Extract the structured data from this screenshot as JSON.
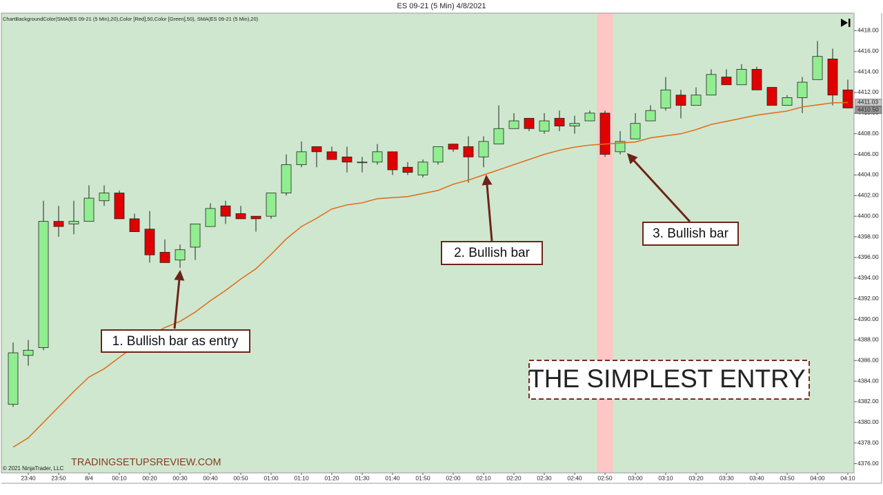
{
  "chart_data": {
    "type": "candlestick",
    "title": "ES 09-21 (5 Min)  4/8/2021",
    "indicator_label": "ChartBackgroundColor(SMA(ES 09-21 (5 Min),20),Color [Red],50,Color [Green],50), SMA(ES 09-21 (5 Min),20)",
    "copyright": "© 2021 NinjaTrader, LLC",
    "watermark": "TRADINGSETUPSREVIEW.COM",
    "headline": "THE SIMPLEST ENTRY",
    "annotations": [
      "1. Bullish bar as entry",
      "2. Bullish bar",
      "3. Bullish bar"
    ],
    "categories": [
      null,
      "23:40",
      null,
      "23:50",
      null,
      "8/4",
      null,
      "00:10",
      null,
      "00:20",
      null,
      "00:30",
      null,
      "00:40",
      null,
      "00:50",
      null,
      "01:00",
      null,
      "01:10",
      null,
      "01:20",
      null,
      "01:30",
      null,
      "01:40",
      null,
      "01:50",
      null,
      "02:00",
      null,
      "02:10",
      null,
      "02:20",
      null,
      "02:30",
      null,
      "02:40",
      null,
      "02:50",
      null,
      "03:00",
      null,
      "03:10",
      null,
      "03:20",
      null,
      "03:30",
      null,
      "03:40",
      null,
      "03:50",
      null,
      "04:00",
      null,
      "04:10"
    ],
    "ohlc": {
      "up_color": "#90ee90",
      "down_color": "#e00000",
      "open": [
        4381.75,
        4386.5,
        4387.25,
        4399.5,
        4399.25,
        4399.5,
        4401.5,
        4402.25,
        4399.75,
        4398.75,
        4396.5,
        4395.75,
        4397,
        4399,
        4401,
        4400.25,
        4400,
        4400,
        4402.25,
        4405,
        4406.75,
        4406.25,
        4405.75,
        4405.25,
        4405.25,
        4406.25,
        4404.75,
        4404,
        4405.25,
        4407,
        4406.75,
        4405.75,
        4407,
        4408.5,
        4409.5,
        4408.25,
        4409.5,
        4408.75,
        4409.25,
        4410,
        4406.25,
        4407.5,
        4409.25,
        4410.5,
        4411.75,
        4410.75,
        4411.75,
        4413.5,
        4412.75,
        4414.25,
        4412.5,
        4410.75,
        4411.5,
        4413.25,
        4415.25,
        4412.25
      ],
      "high": [
        4387.75,
        4388,
        4401.5,
        4401,
        4401.5,
        4403,
        4403,
        4402.5,
        4400.25,
        4400.5,
        4397.75,
        4397.25,
        4399.25,
        4401.25,
        4401.5,
        4401,
        4400,
        4402.25,
        4406,
        4407.25,
        4406.75,
        4406.75,
        4406.75,
        4405.75,
        4407,
        4406.25,
        4405.25,
        4405.5,
        4406.75,
        4407,
        4407.75,
        4407.75,
        4410.75,
        4410,
        4409.5,
        4410,
        4410.25,
        4409.75,
        4410.25,
        4410.25,
        4408.25,
        4410,
        4410.75,
        4413.5,
        4412.25,
        4412.5,
        4414.25,
        4414.25,
        4414.75,
        4414.5,
        4412.5,
        4411.75,
        4413.5,
        4417,
        4416.25,
        4413.25
      ],
      "low": [
        4381.5,
        4385.5,
        4387,
        4398,
        4398.25,
        4399.5,
        4401,
        4399.75,
        4398.5,
        4395.5,
        4395.5,
        4395,
        4395.75,
        4399,
        4399.25,
        4399.75,
        4398.5,
        4399.75,
        4402,
        4404.75,
        4404.75,
        4405.5,
        4404.25,
        4404.25,
        4405,
        4404,
        4404,
        4403.75,
        4405,
        4406.25,
        4403.25,
        4404.75,
        4407,
        4408.5,
        4408.25,
        4408,
        4408.25,
        4408,
        4409.25,
        4405.75,
        4406,
        4407.5,
        4409.25,
        4410.25,
        4409.5,
        4410.75,
        4411.75,
        4412.75,
        4412.75,
        4412.25,
        4410.75,
        4410.75,
        4410,
        4413.25,
        4410.75,
        4410.5
      ],
      "close": [
        4386.75,
        4387,
        4399.5,
        4399,
        4399.5,
        4401.75,
        4402.25,
        4399.75,
        4398.5,
        4396.25,
        4395.5,
        4396.75,
        4399.25,
        4400.75,
        4400,
        4399.75,
        4399.75,
        4402.25,
        4405,
        4406.25,
        4406.25,
        4405.5,
        4405.25,
        4405.25,
        4406.25,
        4404.5,
        4404.25,
        4405.25,
        4406.75,
        4406.5,
        4405.75,
        4407.25,
        4408.5,
        4409.25,
        4408.5,
        4409.25,
        4408.75,
        4409,
        4410,
        4406,
        4407.25,
        4409,
        4410.25,
        4412.25,
        4410.75,
        4411.75,
        4413.75,
        4412.75,
        4414.25,
        4412.25,
        4410.75,
        4411.5,
        4413,
        4415.5,
        4411.75,
        4410.5
      ],
      "last_label": "4410.50"
    },
    "sma": {
      "color": "#e0701e",
      "values": [
        4377.6,
        4378.5,
        4380,
        4381.5,
        4383,
        4384.4,
        4385.2,
        4386.3,
        4387.4,
        4388.4,
        4389.2,
        4389.8,
        4390.7,
        4391.8,
        4392.8,
        4393.9,
        4394.9,
        4396.3,
        4397.8,
        4399,
        4399.8,
        4400.7,
        4401.1,
        4401.3,
        4401.7,
        4401.8,
        4401.9,
        4402.2,
        4402.5,
        4403.1,
        4403.5,
        4404,
        4404.5,
        4405,
        4405.5,
        4406,
        4406.4,
        4406.7,
        4406.9,
        4407,
        4407.1,
        4407.2,
        4407.6,
        4407.8,
        4408,
        4408.4,
        4408.9,
        4409.2,
        4409.5,
        4409.8,
        4410,
        4410.2,
        4410.6,
        4410.8,
        4411,
        4411.03
      ]
    },
    "background_color": "#cfe7cf",
    "highlight": {
      "index": 39,
      "color": "#ffc6c6"
    },
    "ylim": [
      4375.1,
      4419.7
    ],
    "yticks": [
      {
        "value": 4376,
        "label": "4376.00"
      },
      {
        "value": 4378,
        "label": "4378.00"
      },
      {
        "value": 4380,
        "label": "4380.00"
      },
      {
        "value": 4382,
        "label": "4382.00"
      },
      {
        "value": 4384,
        "label": "4384.00"
      },
      {
        "value": 4386,
        "label": "4386.00"
      },
      {
        "value": 4388,
        "label": "4388.00"
      },
      {
        "value": 4390,
        "label": "4390.00"
      },
      {
        "value": 4392,
        "label": "4392.00"
      },
      {
        "value": 4394,
        "label": "4394.00"
      },
      {
        "value": 4396,
        "label": "4396.00"
      },
      {
        "value": 4398,
        "label": "4398.00"
      },
      {
        "value": 4400,
        "label": "4400.00"
      },
      {
        "value": 4402,
        "label": "4402.00"
      },
      {
        "value": 4404,
        "label": "4404.00"
      },
      {
        "value": 4406,
        "label": "4406.00"
      },
      {
        "value": 4408,
        "label": "4408.00"
      },
      {
        "value": 4410,
        "label": "4410.00"
      },
      {
        "value": 4412,
        "label": "4412.00"
      },
      {
        "value": 4414,
        "label": "4414.00"
      },
      {
        "value": 4416,
        "label": "4416.00"
      },
      {
        "value": 4418,
        "label": "4418.00"
      }
    ]
  }
}
